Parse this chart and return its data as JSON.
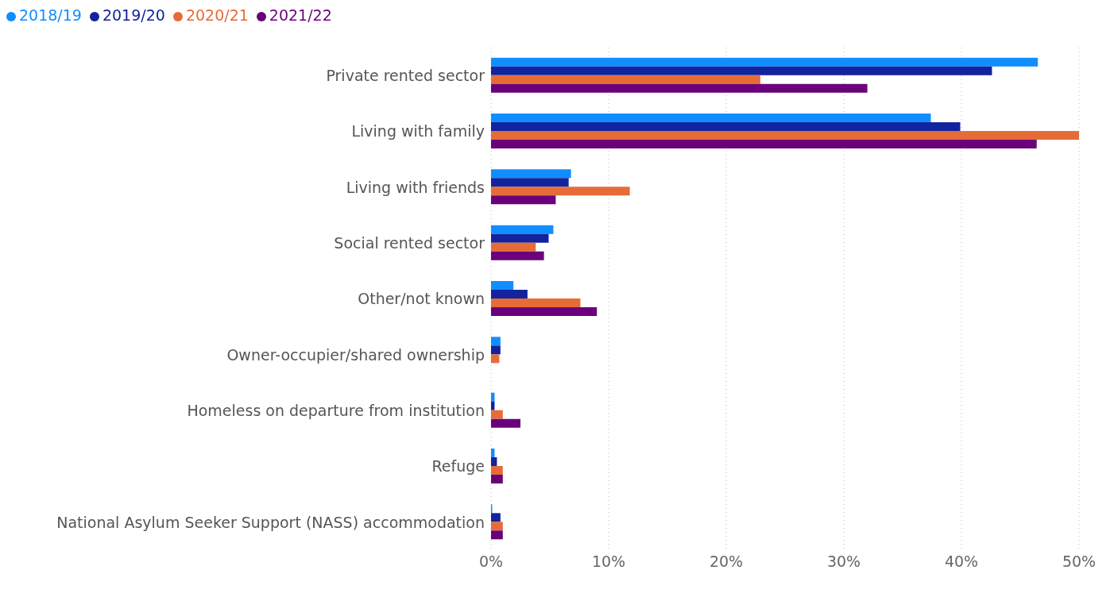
{
  "chart_data": {
    "type": "bar",
    "orientation": "horizontal",
    "categories": [
      "Private rented sector",
      "Living with family",
      "Living with friends",
      "Social rented sector",
      "Other/not known",
      "Owner-occupier/shared ownership",
      "Homeless on departure from institution",
      "Refuge",
      "National Asylum Seeker Support (NASS) accommodation"
    ],
    "series": [
      {
        "name": "2018/19",
        "color": "#118dff",
        "values": [
          46.5,
          37.4,
          6.8,
          5.3,
          1.9,
          0.8,
          0.3,
          0.3,
          0.1
        ]
      },
      {
        "name": "2019/20",
        "color": "#12239e",
        "values": [
          42.6,
          39.9,
          6.6,
          4.9,
          3.1,
          0.8,
          0.3,
          0.5,
          0.8
        ]
      },
      {
        "name": "2020/21",
        "color": "#e66c37",
        "values": [
          22.9,
          50,
          11.8,
          3.8,
          7.6,
          0.7,
          1.0,
          1.0,
          1.0
        ]
      },
      {
        "name": "2021/22",
        "color": "#6b007b",
        "values": [
          32.0,
          46.4,
          5.5,
          4.5,
          9.0,
          null,
          2.5,
          1.0,
          1.0
        ]
      }
    ],
    "xlim": [
      0,
      50
    ],
    "xticks": [
      {
        "value": 0,
        "label": "0%"
      },
      {
        "value": 10,
        "label": "10%"
      },
      {
        "value": 20,
        "label": "20%"
      },
      {
        "value": 30,
        "label": "30%"
      },
      {
        "value": 40,
        "label": "40%"
      },
      {
        "value": 50,
        "label": "50%"
      }
    ],
    "grid": "x",
    "legend": "top left"
  }
}
